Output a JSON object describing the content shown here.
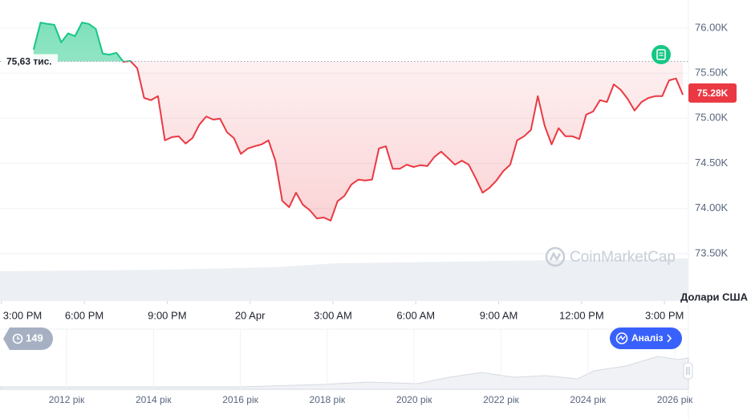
{
  "chart_data": {
    "type": "line",
    "x": [
      970,
      985,
      1000,
      1015,
      1030,
      1045,
      1060,
      1075,
      1090,
      1105,
      1120,
      1135,
      1150,
      1165,
      1180,
      1195,
      1210,
      1225,
      1240,
      1255,
      1270,
      1285,
      1300,
      1315,
      1330,
      1345,
      1360,
      1375,
      1390,
      1405,
      1420,
      1435,
      1450,
      1465,
      1480,
      1495,
      1510,
      1525,
      1540,
      1555,
      1570,
      1585,
      1600,
      1615,
      1630,
      1645,
      1660,
      1675,
      1690,
      1705,
      1720,
      1735,
      1750,
      1765,
      1780,
      1795,
      1810,
      1825,
      1840,
      1855,
      1870,
      1885,
      1900,
      1915,
      1930,
      1945,
      1960,
      1975,
      1990,
      2005,
      2020,
      2035,
      2050,
      2065,
      2080,
      2095,
      2110,
      2125,
      2140,
      2155,
      2170,
      2185,
      2200,
      2215,
      2230,
      2245,
      2260,
      2275,
      2290,
      2305,
      2320,
      2335,
      2350,
      2365,
      2380
    ],
    "values": [
      75760,
      76060,
      76045,
      76035,
      75840,
      75940,
      75910,
      76060,
      76045,
      75990,
      75715,
      75705,
      75725,
      75625,
      75635,
      75555,
      75225,
      75200,
      75245,
      74755,
      74790,
      74800,
      74720,
      74780,
      74930,
      75020,
      74985,
      74995,
      74845,
      74780,
      74605,
      74665,
      74690,
      74710,
      74755,
      74530,
      74085,
      74015,
      74175,
      74040,
      73980,
      73890,
      73900,
      73865,
      74080,
      74140,
      74265,
      74320,
      74310,
      74320,
      74665,
      74690,
      74440,
      74440,
      74485,
      74460,
      74480,
      74470,
      74570,
      74630,
      74560,
      74485,
      74530,
      74485,
      74335,
      74175,
      74230,
      74310,
      74415,
      74485,
      74755,
      74800,
      74870,
      75245,
      74915,
      74710,
      74890,
      74800,
      74800,
      74770,
      75040,
      75075,
      75200,
      75180,
      75375,
      75315,
      75215,
      75085,
      75180,
      75225,
      75245,
      75245,
      75420,
      75440,
      75260
    ],
    "color_above": "#16c784",
    "color_below": "#ea3943",
    "xlim": [
      897,
      2392
    ],
    "xticks": [
      {
        "value": 900,
        "label": "3:00 PM"
      },
      {
        "value": 1080,
        "label": "6:00 PM"
      },
      {
        "value": 1260,
        "label": "9:00 PM"
      },
      {
        "value": 1440,
        "label": "20 Apr"
      },
      {
        "value": 1620,
        "label": "3:00 AM"
      },
      {
        "value": 1800,
        "label": "6:00 AM"
      },
      {
        "value": 1980,
        "label": "9:00 AM"
      },
      {
        "value": 2160,
        "label": "12:00 PM"
      },
      {
        "value": 2340,
        "label": "3:00 PM"
      }
    ],
    "ylim": [
      72975,
      76310
    ],
    "yticks": [
      {
        "value": 73500,
        "label": "73.50K"
      },
      {
        "value": 74000,
        "label": "74.00K"
      },
      {
        "value": 74500,
        "label": "74.50K"
      },
      {
        "value": 75000,
        "label": "75.00K"
      },
      {
        "value": 75500,
        "label": "75.50K"
      },
      {
        "value": 76000,
        "label": "76.00K"
      }
    ],
    "grid": true,
    "baseline": {
      "value": 75630,
      "label": "75,63 тис."
    },
    "last_price": {
      "value": 75280,
      "label": "75.28K"
    },
    "y_unit_label": "Долари США",
    "watermark": "CoinMarketCap",
    "history_count": 149,
    "analysis_button": "Аналіз",
    "navigator_ticks": [
      "2012 рік",
      "2014 рік",
      "2016 рік",
      "2018 рік",
      "2020 рік",
      "2022 рік",
      "2024 рік",
      "2026 рік"
    ]
  }
}
